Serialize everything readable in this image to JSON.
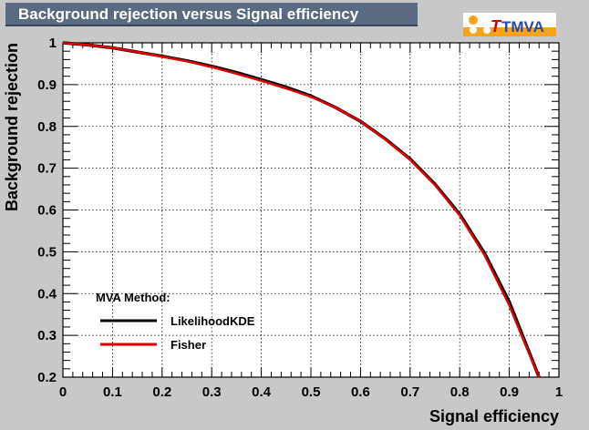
{
  "title": "Background rejection versus Signal efficiency",
  "logo": {
    "text": "TMVA",
    "icon": "tmva-logo"
  },
  "chart_data": {
    "type": "line",
    "xlabel": "Signal efficiency",
    "ylabel": "Background rejection",
    "xlim": [
      0,
      1
    ],
    "ylim": [
      0.2,
      1
    ],
    "xticks": [
      "0",
      "0.1",
      "0.2",
      "0.3",
      "0.4",
      "0.5",
      "0.6",
      "0.7",
      "0.8",
      "0.9",
      "1"
    ],
    "yticks": [
      "0.2",
      "0.3",
      "0.4",
      "0.5",
      "0.6",
      "0.7",
      "0.8",
      "0.9",
      "1"
    ],
    "grid": true,
    "legend": {
      "title": "MVA Method:",
      "placement": "bottom-left"
    },
    "series": [
      {
        "name": "LikelihoodKDE",
        "color": "#000000",
        "x": [
          0,
          0.05,
          0.1,
          0.15,
          0.2,
          0.25,
          0.3,
          0.35,
          0.4,
          0.45,
          0.5,
          0.55,
          0.6,
          0.65,
          0.7,
          0.75,
          0.8,
          0.85,
          0.9,
          0.93,
          0.96
        ],
        "y": [
          1,
          0.995,
          0.988,
          0.978,
          0.968,
          0.957,
          0.944,
          0.929,
          0.912,
          0.894,
          0.873,
          0.845,
          0.812,
          0.77,
          0.722,
          0.662,
          0.59,
          0.497,
          0.38,
          0.29,
          0.2
        ]
      },
      {
        "name": "Fisher",
        "color": "#e00000",
        "x": [
          0,
          0.05,
          0.1,
          0.15,
          0.2,
          0.25,
          0.3,
          0.35,
          0.4,
          0.45,
          0.5,
          0.55,
          0.6,
          0.65,
          0.7,
          0.75,
          0.8,
          0.85,
          0.9,
          0.93,
          0.96
        ],
        "y": [
          1,
          0.995,
          0.988,
          0.978,
          0.967,
          0.956,
          0.942,
          0.926,
          0.909,
          0.891,
          0.871,
          0.845,
          0.812,
          0.769,
          0.72,
          0.66,
          0.587,
          0.492,
          0.372,
          0.285,
          0.2
        ]
      }
    ]
  }
}
